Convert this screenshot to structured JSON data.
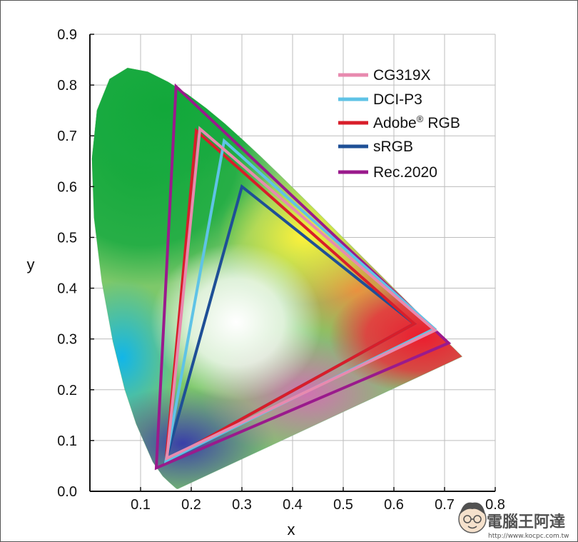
{
  "chart_data": {
    "type": "scatter",
    "title": "",
    "xlabel": "x",
    "ylabel": "y",
    "xlim": [
      0.0,
      0.8
    ],
    "ylim": [
      0.0,
      0.9
    ],
    "x_ticks": [
      "0.1",
      "0.2",
      "0.3",
      "0.4",
      "0.5",
      "0.6",
      "0.7",
      "0.8"
    ],
    "y_ticks": [
      "0.0",
      "0.1",
      "0.2",
      "0.3",
      "0.4",
      "0.5",
      "0.6",
      "0.7",
      "0.8",
      "0.9"
    ],
    "grid": true,
    "legend_position": "top-right",
    "spectral_locus": [
      [
        0.1741,
        0.005
      ],
      [
        0.1738,
        0.0049
      ],
      [
        0.1733,
        0.0048
      ],
      [
        0.1726,
        0.0048
      ],
      [
        0.1714,
        0.0051
      ],
      [
        0.1689,
        0.0069
      ],
      [
        0.1644,
        0.0109
      ],
      [
        0.1566,
        0.0177
      ],
      [
        0.144,
        0.0297
      ],
      [
        0.1241,
        0.0578
      ],
      [
        0.0913,
        0.1327
      ],
      [
        0.0687,
        0.2007
      ],
      [
        0.0454,
        0.295
      ],
      [
        0.0235,
        0.4127
      ],
      [
        0.0082,
        0.5384
      ],
      [
        0.0039,
        0.6548
      ],
      [
        0.0139,
        0.7502
      ],
      [
        0.0389,
        0.812
      ],
      [
        0.0743,
        0.8338
      ],
      [
        0.1142,
        0.8262
      ],
      [
        0.1547,
        0.8059
      ],
      [
        0.1929,
        0.7816
      ],
      [
        0.2296,
        0.7543
      ],
      [
        0.2658,
        0.7243
      ],
      [
        0.3016,
        0.6923
      ],
      [
        0.3373,
        0.6589
      ],
      [
        0.3731,
        0.6245
      ],
      [
        0.4087,
        0.5896
      ],
      [
        0.4441,
        0.5547
      ],
      [
        0.4788,
        0.5202
      ],
      [
        0.5125,
        0.4866
      ],
      [
        0.5448,
        0.4544
      ],
      [
        0.5752,
        0.4242
      ],
      [
        0.6029,
        0.3965
      ],
      [
        0.627,
        0.3725
      ],
      [
        0.6482,
        0.3514
      ],
      [
        0.6658,
        0.334
      ],
      [
        0.6801,
        0.3197
      ],
      [
        0.6915,
        0.3083
      ],
      [
        0.7006,
        0.2993
      ],
      [
        0.7079,
        0.292
      ],
      [
        0.714,
        0.2859
      ],
      [
        0.719,
        0.2809
      ],
      [
        0.723,
        0.277
      ],
      [
        0.726,
        0.274
      ],
      [
        0.7283,
        0.2717
      ],
      [
        0.73,
        0.27
      ],
      [
        0.7311,
        0.2689
      ],
      [
        0.732,
        0.268
      ],
      [
        0.7327,
        0.2673
      ],
      [
        0.7334,
        0.2666
      ],
      [
        0.734,
        0.266
      ],
      [
        0.7344,
        0.2656
      ],
      [
        0.7346,
        0.2654
      ],
      [
        0.7347,
        0.2653
      ]
    ],
    "series": [
      {
        "name": "CG319X",
        "color": "#e88aaf",
        "points": [
          [
            0.681,
            0.317
          ],
          [
            0.217,
            0.714
          ],
          [
            0.152,
            0.065
          ]
        ]
      },
      {
        "name": "DCI-P3",
        "color": "#5fc3e6",
        "points": [
          [
            0.68,
            0.32
          ],
          [
            0.265,
            0.69
          ],
          [
            0.15,
            0.06
          ]
        ]
      },
      {
        "name": "Adobe® RGB",
        "color": "#d81e2a",
        "points": [
          [
            0.64,
            0.33
          ],
          [
            0.21,
            0.71
          ],
          [
            0.15,
            0.06
          ]
        ]
      },
      {
        "name": "sRGB",
        "color": "#1e4f96",
        "points": [
          [
            0.64,
            0.33
          ],
          [
            0.3,
            0.6
          ],
          [
            0.15,
            0.06
          ]
        ]
      },
      {
        "name": "Rec.2020",
        "color": "#9a1a8c",
        "points": [
          [
            0.708,
            0.292
          ],
          [
            0.17,
            0.797
          ],
          [
            0.131,
            0.046
          ]
        ]
      }
    ],
    "legend_labels": {
      "cg319x": "CG319X",
      "dcip3": "DCI-P3",
      "adobe_main": "Adobe",
      "adobe_reg": "®",
      "adobe_rest": "RGB",
      "srgb": "sRGB",
      "rec2020": "Rec.2020"
    }
  },
  "watermark": {
    "brand": "電腦王阿達",
    "url": "http://www.kocpc.com.tw"
  }
}
